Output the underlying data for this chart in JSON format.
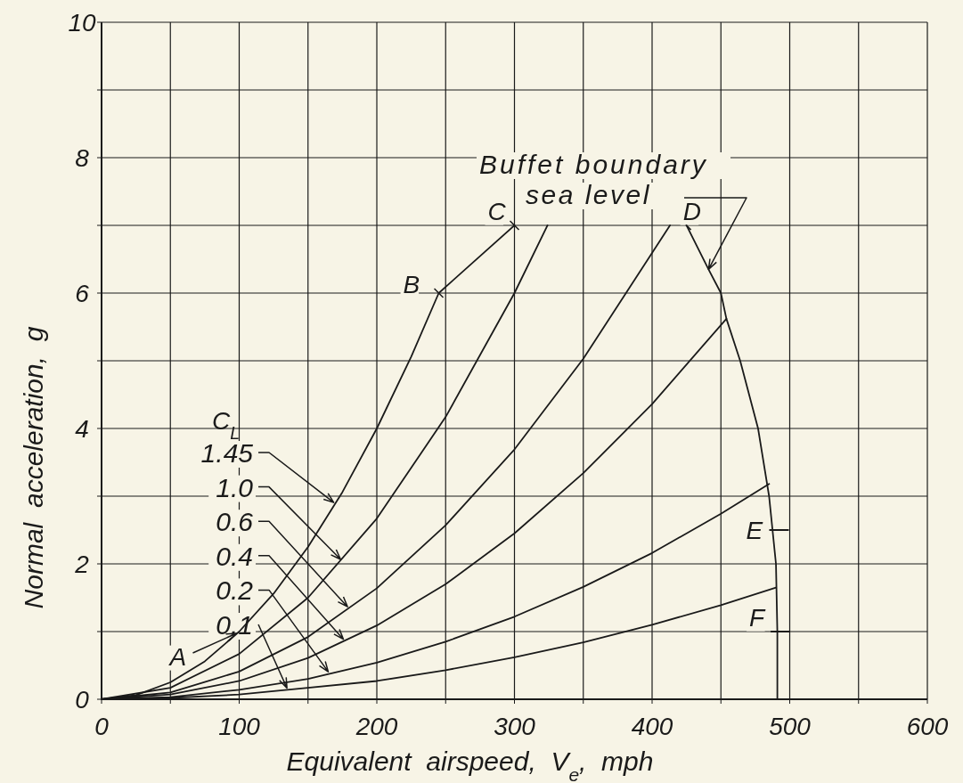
{
  "chart_data": {
    "type": "line",
    "xlabel": "Equivalent  airspeed,  V$_{e}$,  mph",
    "ylabel": "Normal  acceleration,  g",
    "xlim": [
      0,
      600
    ],
    "xticks": [
      0,
      {
        "value": 50,
        "label": null
      },
      100,
      {
        "value": 150,
        "label": null
      },
      200,
      {
        "value": 250,
        "label": null
      },
      300,
      {
        "value": 350,
        "label": null
      },
      400,
      {
        "value": 450,
        "label": null
      },
      500,
      {
        "value": 550,
        "label": null
      },
      600
    ],
    "ylim": [
      0,
      10
    ],
    "yticks": [
      0,
      {
        "value": 1,
        "label": null
      },
      2,
      {
        "value": 3,
        "label": null
      },
      4,
      {
        "value": 5,
        "label": null
      },
      6,
      {
        "value": 7,
        "label": null
      },
      8,
      {
        "value": 9,
        "label": null
      },
      10
    ],
    "grid": true,
    "series": [
      {
        "color": "#1a1a1a",
        "x": [
          0,
          25,
          50,
          75,
          100,
          125,
          150,
          175,
          200,
          225,
          245,
          300
        ],
        "values": [
          0,
          0.06,
          0.25,
          0.56,
          1.0,
          1.56,
          2.25,
          3.06,
          4.0,
          5.06,
          6.0,
          7.0
        ]
      },
      {
        "color": "#1a1a1a",
        "x": [
          0,
          50,
          100,
          150,
          200,
          250,
          300,
          324
        ],
        "values": [
          0,
          0.17,
          0.67,
          1.5,
          2.67,
          4.17,
          6.0,
          7.0
        ]
      },
      {
        "color": "#1a1a1a",
        "x": [
          0,
          50,
          100,
          150,
          200,
          250,
          300,
          350,
          413
        ],
        "values": [
          0,
          0.1,
          0.41,
          0.92,
          1.64,
          2.57,
          3.69,
          5.03,
          7.0
        ]
      },
      {
        "color": "#1a1a1a",
        "x": [
          0,
          50,
          100,
          150,
          200,
          250,
          300,
          350,
          400,
          454
        ],
        "values": [
          0,
          0.07,
          0.27,
          0.61,
          1.09,
          1.7,
          2.45,
          3.34,
          4.36,
          5.62
        ]
      },
      {
        "color": "#1a1a1a",
        "x": [
          0,
          50,
          100,
          150,
          200,
          250,
          300,
          350,
          400,
          450,
          485
        ],
        "values": [
          0,
          0.03,
          0.14,
          0.3,
          0.54,
          0.85,
          1.22,
          1.66,
          2.16,
          2.74,
          3.18
        ]
      },
      {
        "color": "#1a1a1a",
        "x": [
          0,
          50,
          100,
          140,
          200,
          250,
          300,
          350,
          400,
          450,
          490
        ],
        "values": [
          0,
          0.02,
          0.07,
          0.15,
          0.27,
          0.43,
          0.62,
          0.84,
          1.1,
          1.39,
          1.65
        ]
      },
      {
        "color": "#1a1a1a",
        "x": [
          425,
          441,
          450,
          454,
          464,
          477,
          485,
          490,
          491,
          491
        ],
        "values": [
          7,
          6.35,
          6.0,
          5.62,
          5.0,
          4.0,
          3.0,
          2.0,
          1.0,
          0
        ]
      }
    ],
    "annotations": [
      "C$_{L}$",
      {
        "text": "1.45",
        "x": 170,
        "y": 2.88
      },
      {
        "text": "1.0",
        "x": 175,
        "y": 2.04
      },
      {
        "text": "0.6",
        "x": 180,
        "y": 1.34
      },
      {
        "text": "0.4",
        "x": 177,
        "y": 0.86
      },
      {
        "text": "0.2",
        "x": 166,
        "y": 0.38
      },
      {
        "text": "0.1",
        "x": 136,
        "y": 0.14
      },
      {
        "text": "A",
        "x": 100,
        "y": 1.0
      },
      {
        "text": "B",
        "x": 245,
        "y": 6
      },
      {
        "text": "C",
        "x": 300,
        "y": 7
      },
      {
        "text": "D",
        "x": 425,
        "y": 7
      },
      {
        "text": "E",
        "x": 489,
        "y": 2.5
      },
      {
        "text": "F",
        "x": 490,
        "y": 1.0
      },
      {
        "text": "Buffet boundary\nsea level",
        "x": 441,
        "y": 6.35
      }
    ]
  }
}
